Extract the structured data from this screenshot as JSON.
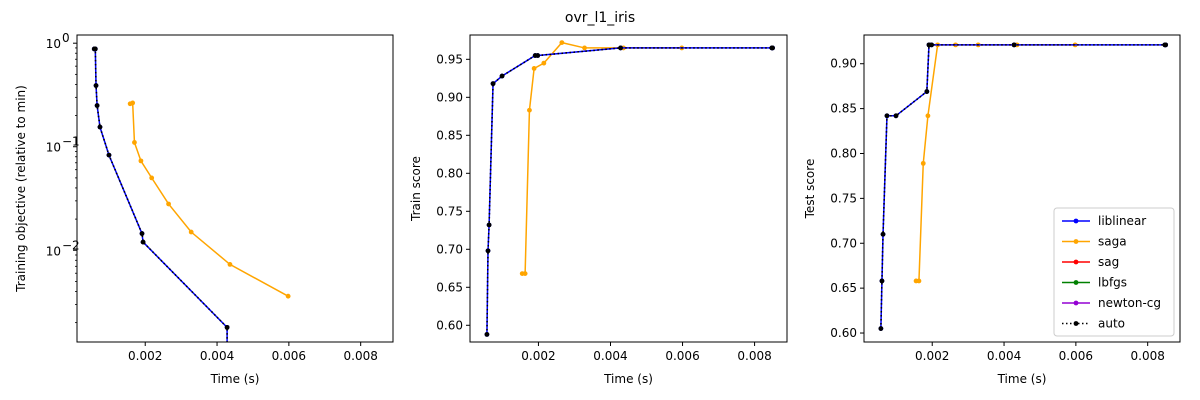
{
  "figure": {
    "title": "ovr_l1_iris"
  },
  "colors": {
    "liblinear": "#0000ff",
    "saga": "#ffa500",
    "sag": "#ff0000",
    "lbfgs": "#008000",
    "newton-cg": "#9400d3",
    "auto": "#000000"
  },
  "chart_data": [
    {
      "type": "line",
      "xlabel": "Time (s)",
      "ylabel": "Training objective (relative to min)",
      "yscale": "log",
      "xlim": [
        0.0001,
        0.0089
      ],
      "ylim": [
        0.0013,
        1.2
      ],
      "xticks": [
        0.002,
        0.004,
        0.006,
        0.008
      ],
      "xtick_labels": [
        "0.002",
        "0.004",
        "0.006",
        "0.008"
      ],
      "yticks": [
        0.01,
        0.1,
        1
      ],
      "ytick_labels": [
        "10",
        "10",
        "10"
      ],
      "ytick_exponents": [
        "−2",
        "−1",
        "0"
      ],
      "series": [
        {
          "name": "saga",
          "x": [
            0.00158,
            0.00165,
            0.0017,
            0.00188,
            0.00218,
            0.00265,
            0.00328,
            0.00436,
            0.00598
          ],
          "y": [
            0.26,
            0.265,
            0.11,
            0.073,
            0.05,
            0.028,
            0.015,
            0.0073,
            0.0036
          ]
        },
        {
          "name": "liblinear",
          "x": [
            0.00058,
            0.00061,
            0.00063,
            0.00066,
            0.00074,
            0.00099,
            0.00191,
            0.00194,
            0.00428,
            0.00428
          ],
          "y": [
            0.88,
            0.88,
            0.39,
            0.25,
            0.155,
            0.083,
            0.0145,
            0.012,
            0.0018,
            0.0009
          ]
        },
        {
          "name": "auto",
          "x": [
            0.00058,
            0.00061,
            0.00063,
            0.00066,
            0.00074,
            0.00099,
            0.00191,
            0.00194,
            0.00428,
            0.00428
          ],
          "y": [
            0.88,
            0.88,
            0.39,
            0.25,
            0.155,
            0.083,
            0.0145,
            0.012,
            0.0018,
            0.0009
          ],
          "style": "dotted"
        }
      ]
    },
    {
      "type": "line",
      "xlabel": "Time (s)",
      "ylabel": "Train score",
      "xlim": [
        0.0001,
        0.0089
      ],
      "ylim": [
        0.578,
        0.982
      ],
      "xticks": [
        0.002,
        0.004,
        0.006,
        0.008
      ],
      "xtick_labels": [
        "0.002",
        "0.004",
        "0.006",
        "0.008"
      ],
      "yticks": [
        0.6,
        0.65,
        0.7,
        0.75,
        0.8,
        0.85,
        0.9,
        0.95
      ],
      "ytick_labels": [
        "0.60",
        "0.65",
        "0.70",
        "0.75",
        "0.80",
        "0.85",
        "0.90",
        "0.95"
      ],
      "series": [
        {
          "name": "saga",
          "x": [
            0.00155,
            0.00163,
            0.00175,
            0.00188,
            0.00215,
            0.00265,
            0.00328,
            0.00436,
            0.00598
          ],
          "y": [
            0.668,
            0.668,
            0.883,
            0.938,
            0.945,
            0.972,
            0.965,
            0.965,
            0.965
          ]
        },
        {
          "name": "liblinear",
          "x": [
            0.00057,
            0.0006,
            0.00063,
            0.00074,
            0.00099,
            0.00191,
            0.00198,
            0.00428,
            0.00848,
            0.0085
          ],
          "y": [
            0.588,
            0.698,
            0.732,
            0.918,
            0.928,
            0.955,
            0.955,
            0.965,
            0.965,
            0.965
          ]
        },
        {
          "name": "auto",
          "x": [
            0.00057,
            0.0006,
            0.00063,
            0.00074,
            0.00099,
            0.00191,
            0.00198,
            0.00428,
            0.00848,
            0.0085
          ],
          "y": [
            0.588,
            0.698,
            0.732,
            0.918,
            0.928,
            0.955,
            0.955,
            0.965,
            0.965,
            0.965
          ],
          "style": "dotted"
        }
      ]
    },
    {
      "type": "line",
      "xlabel": "Time (s)",
      "ylabel": "Test score",
      "xlim": [
        0.0001,
        0.0089
      ],
      "ylim": [
        0.59,
        0.932
      ],
      "xticks": [
        0.002,
        0.004,
        0.006,
        0.008
      ],
      "xtick_labels": [
        "0.002",
        "0.004",
        "0.006",
        "0.008"
      ],
      "yticks": [
        0.6,
        0.65,
        0.7,
        0.75,
        0.8,
        0.85,
        0.9
      ],
      "ytick_labels": [
        "0.60",
        "0.65",
        "0.70",
        "0.75",
        "0.80",
        "0.85",
        "0.90"
      ],
      "series": [
        {
          "name": "saga",
          "x": [
            0.00155,
            0.00163,
            0.00175,
            0.00188,
            0.00215,
            0.00265,
            0.00328,
            0.00436,
            0.00598
          ],
          "y": [
            0.658,
            0.658,
            0.789,
            0.842,
            0.921,
            0.921,
            0.921,
            0.921,
            0.921
          ]
        },
        {
          "name": "liblinear",
          "x": [
            0.00057,
            0.0006,
            0.00063,
            0.00074,
            0.00099,
            0.00185,
            0.00191,
            0.00198,
            0.00428,
            0.00848,
            0.0085
          ],
          "y": [
            0.605,
            0.658,
            0.71,
            0.842,
            0.842,
            0.869,
            0.921,
            0.921,
            0.921,
            0.921,
            0.921
          ]
        },
        {
          "name": "auto",
          "x": [
            0.00057,
            0.0006,
            0.00063,
            0.00074,
            0.00099,
            0.00185,
            0.00191,
            0.00198,
            0.00428,
            0.00848,
            0.0085
          ],
          "y": [
            0.605,
            0.658,
            0.71,
            0.842,
            0.842,
            0.869,
            0.921,
            0.921,
            0.921,
            0.921,
            0.921
          ],
          "style": "dotted"
        }
      ]
    }
  ],
  "legend": {
    "placement": "lower-right",
    "entries": [
      {
        "name": "liblinear",
        "style": "solid"
      },
      {
        "name": "saga",
        "style": "solid"
      },
      {
        "name": "sag",
        "style": "solid"
      },
      {
        "name": "lbfgs",
        "style": "solid"
      },
      {
        "name": "newton-cg",
        "style": "solid"
      },
      {
        "name": "auto",
        "style": "dotted"
      }
    ]
  }
}
